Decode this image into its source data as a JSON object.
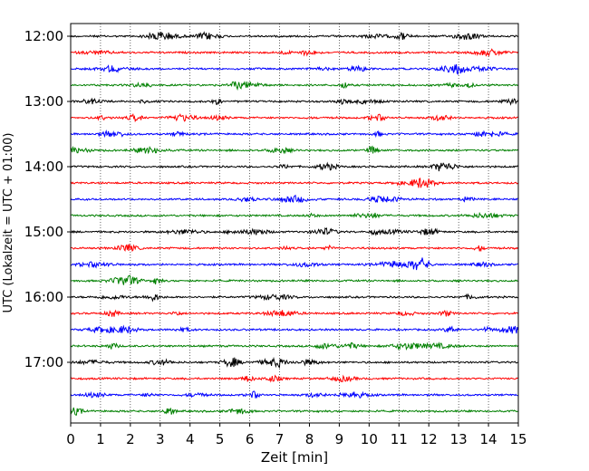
{
  "chart_data": {
    "type": "line",
    "xlabel": "Zeit  [min]",
    "ylabel": "UTC (Lokalzeit = UTC + 01:00)",
    "xlim": [
      0,
      15
    ],
    "x_ticks": [
      "0",
      "1",
      "2",
      "3",
      "4",
      "5",
      "6",
      "7",
      "8",
      "9",
      "10",
      "11",
      "12",
      "13",
      "14",
      "15"
    ],
    "y_tick_labels": [
      "12:00",
      "13:00",
      "14:00",
      "15:00",
      "16:00",
      "17:00"
    ],
    "grid": "vertical dotted lines at each minute",
    "trace_start_times": [
      "12:00",
      "12:15",
      "12:30",
      "12:45",
      "13:00",
      "13:15",
      "13:30",
      "13:45",
      "14:00",
      "14:15",
      "14:30",
      "14:45",
      "15:00",
      "15:15",
      "15:30",
      "15:45",
      "16:00",
      "16:15",
      "16:30",
      "16:45",
      "17:00",
      "17:15",
      "17:30",
      "17:45"
    ],
    "trace_colors": [
      "#000000",
      "#ff0000",
      "#0000ff",
      "#008000"
    ],
    "trace_minutes_per_row": 15
  }
}
